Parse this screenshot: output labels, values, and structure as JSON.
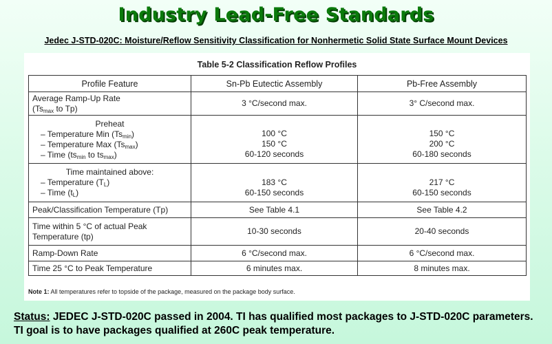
{
  "header": {
    "title": "Industry Lead-Free Standards",
    "subtitle": "Jedec J-STD-020C: Moisture/Reflow Sensitivity Classification for Nonhermetic Solid State Surface Mount Devices"
  },
  "table": {
    "title": "Table 5-2   Classification Reflow Profiles",
    "columns": [
      "Profile Feature",
      "Sn-Pb Eutectic Assembly",
      "Pb-Free Assembly"
    ],
    "rows": {
      "ramp_up": {
        "label": "Average Ramp-Up Rate",
        "sub_open": "(Ts",
        "sub_max": "max",
        "sub_close": " to Tp)",
        "snpb": "3 °C/second max.",
        "pbfree": "3° C/second max."
      },
      "preheat": {
        "heading": "Preheat",
        "min_label": "–  Temperature Min (Ts",
        "min_sub": "min",
        "max_label": "–  Temperature Max (Ts",
        "max_sub": "max",
        "time_label": "–  Time (ts",
        "time_sub1": "min",
        "time_mid": " to ts",
        "time_sub2": "max",
        "snpb": [
          "100 °C",
          "150 °C",
          "60-120 seconds"
        ],
        "pbfree": [
          "150 °C",
          "200 °C",
          "60-180 seconds"
        ]
      },
      "maintained": {
        "heading": "Time maintained above:",
        "temp_label": "–  Temperature (T",
        "temp_sub": "L",
        "time_label": "–  Time (t",
        "time_sub": "L",
        "snpb": [
          "183 °C",
          "60-150 seconds"
        ],
        "pbfree": [
          "217 °C",
          "60-150 seconds"
        ]
      },
      "peak": {
        "label": "Peak/Classification Temperature (Tp)",
        "snpb": "See Table 4.1",
        "pbfree": "See Table 4.2"
      },
      "within5": {
        "label_line1": "Time within 5 °C of actual Peak",
        "label_line2": "Temperature (tp)",
        "snpb": "10-30 seconds",
        "pbfree": "20-40 seconds"
      },
      "ramp_down": {
        "label": "Ramp-Down Rate",
        "snpb": "6 °C/second max.",
        "pbfree": "6 °C/second max."
      },
      "time25": {
        "label": "Time 25 °C to Peak Temperature",
        "snpb": "6 minutes max.",
        "pbfree": "8 minutes max."
      }
    },
    "note_label": "Note 1:",
    "note_text": " All temperatures refer to topside of the package, measured on the package body surface."
  },
  "status": {
    "label": "Status:",
    "text": " JEDEC J-STD-020C passed in 2004.  TI has qualified most packages to J-STD-020C parameters.  TI goal is to have packages qualified at 260C peak temperature."
  },
  "colors": {
    "title_green": "#0b7a0b",
    "title_shadow": "#063f06",
    "background_top": "#f2fff7",
    "background_bottom": "#c6f7dc"
  }
}
